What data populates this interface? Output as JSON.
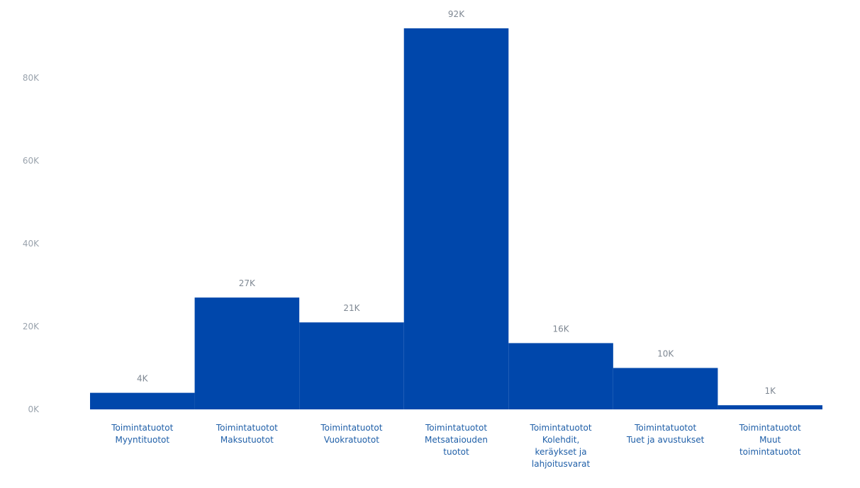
{
  "chart_data": {
    "type": "bar",
    "title": "",
    "xlabel": "",
    "ylabel": "",
    "ylim": [
      0,
      92000
    ],
    "y_ticks": [
      0,
      20000,
      40000,
      60000,
      80000
    ],
    "y_tick_labels": [
      "0K",
      "20K",
      "40K",
      "60K",
      "80K"
    ],
    "grid": false,
    "legend": "none",
    "bar_color": "#0047AB",
    "label_color": "#1f5fa8",
    "categories": [
      [
        "Toimintatuotot",
        "Myyntituotot"
      ],
      [
        "Toimintatuotot",
        "Maksutuotot"
      ],
      [
        "Toimintatuotot",
        "Vuokratuotot"
      ],
      [
        "Toimintatuotot",
        "Metsataiouden",
        "tuotot"
      ],
      [
        "Toimintatuotot",
        "Kolehdit,",
        "keräykset ja",
        "lahjoitusvarat"
      ],
      [
        "Toimintatuotot",
        "Tuet ja avustukset"
      ],
      [
        "Toimintatuotot",
        "Muut",
        "toimintatuotot"
      ]
    ],
    "values": [
      4000,
      27000,
      21000,
      92000,
      16000,
      10000,
      1000
    ],
    "data_labels": [
      "4K",
      "27K",
      "21K",
      "92K",
      "16K",
      "10K",
      "1K"
    ]
  }
}
